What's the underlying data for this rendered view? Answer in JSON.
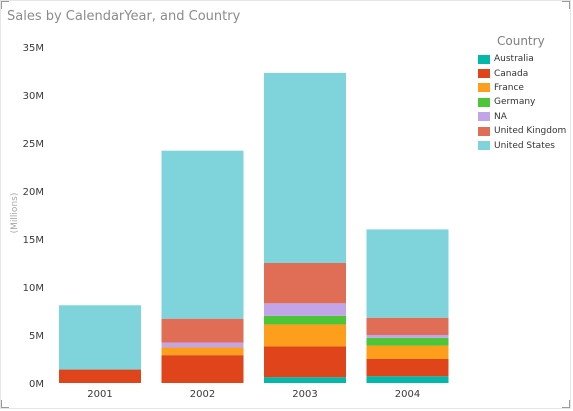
{
  "chart_data": {
    "type": "bar",
    "stacked": true,
    "title": "Sales by CalendarYear, and Country",
    "ylabel": "(Millions)",
    "xlabel": "",
    "ylim": [
      0,
      35
    ],
    "yticks": [
      "0M",
      "5M",
      "10M",
      "15M",
      "20M",
      "25M",
      "30M",
      "35M"
    ],
    "grid": false,
    "legend_title": "Country",
    "legend_position": "right",
    "categories": [
      "2001",
      "2002",
      "2003",
      "2004"
    ],
    "series": [
      {
        "name": "Australia",
        "color": "#01b8aa",
        "values": [
          0.0,
          0.0,
          0.6,
          0.7
        ]
      },
      {
        "name": "Canada",
        "color": "#e0441b",
        "values": [
          1.4,
          2.9,
          3.2,
          1.8
        ]
      },
      {
        "name": "France",
        "color": "#fd9f1c",
        "values": [
          0.0,
          0.8,
          2.3,
          1.4
        ]
      },
      {
        "name": "Germany",
        "color": "#4cc539",
        "values": [
          0.0,
          0.0,
          0.9,
          0.8
        ]
      },
      {
        "name": "NA",
        "color": "#c2a5e8",
        "values": [
          0.0,
          0.5,
          1.3,
          0.3
        ]
      },
      {
        "name": "United Kingdom",
        "color": "#e06e57",
        "values": [
          0.0,
          2.5,
          4.2,
          1.8
        ]
      },
      {
        "name": "United States",
        "color": "#7fd4db",
        "values": [
          6.7,
          17.5,
          19.8,
          9.2
        ]
      }
    ]
  }
}
